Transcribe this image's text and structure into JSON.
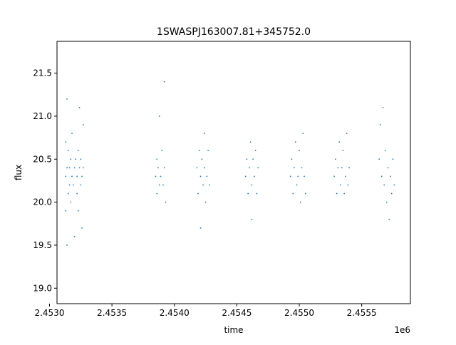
{
  "chart_data": {
    "type": "scatter",
    "title": "1SWASPJ163007.81+345752.0",
    "xlabel": "time",
    "ylabel": "flux",
    "x_offset_label": "1e6",
    "xlim": [
      2.45306,
      2.45589
    ],
    "ylim": [
      18.82,
      21.87
    ],
    "x_ticks": [
      2.453,
      2.4535,
      2.454,
      2.4545,
      2.455,
      2.4555
    ],
    "x_tick_labels": [
      "2.4530",
      "2.4535",
      "2.4540",
      "2.4545",
      "2.4550",
      "2.4555"
    ],
    "y_ticks": [
      19.0,
      19.5,
      20.0,
      20.5,
      21.0,
      21.5
    ],
    "y_tick_labels": [
      "19.0",
      "19.5",
      "20.0",
      "20.5",
      "21.0",
      "21.5"
    ],
    "grid": false,
    "legend": "none",
    "marker_color": "#1f77b4",
    "series": [
      {
        "name": "",
        "note_points_are_dense_clusters": true,
        "points": [
          [
            2.45313,
            20.3
          ],
          [
            2.45313,
            20.7
          ],
          [
            2.45313,
            19.9
          ],
          [
            2.45314,
            20.4
          ],
          [
            2.45314,
            21.2
          ],
          [
            2.45314,
            19.5
          ],
          [
            2.45315,
            20.6
          ],
          [
            2.45315,
            20.1
          ],
          [
            2.45316,
            20.4
          ],
          [
            2.45316,
            20.2
          ],
          [
            2.45317,
            20.5
          ],
          [
            2.45317,
            20.0
          ],
          [
            2.45318,
            20.3
          ],
          [
            2.45318,
            20.8
          ],
          [
            2.45319,
            20.2
          ],
          [
            2.4532,
            20.4
          ],
          [
            2.4532,
            19.6
          ],
          [
            2.45321,
            20.5
          ],
          [
            2.45322,
            20.1
          ],
          [
            2.45322,
            20.3
          ],
          [
            2.45323,
            20.6
          ],
          [
            2.45323,
            19.9
          ],
          [
            2.45324,
            20.4
          ],
          [
            2.45324,
            21.1
          ],
          [
            2.45325,
            20.2
          ],
          [
            2.45325,
            20.5
          ],
          [
            2.45326,
            20.3
          ],
          [
            2.45326,
            19.7
          ],
          [
            2.45327,
            20.4
          ],
          [
            2.45327,
            20.9
          ],
          [
            2.45385,
            20.3
          ],
          [
            2.45386,
            20.1
          ],
          [
            2.45386,
            20.5
          ],
          [
            2.45387,
            20.4
          ],
          [
            2.45388,
            20.2
          ],
          [
            2.45388,
            21.0
          ],
          [
            2.45389,
            20.3
          ],
          [
            2.4539,
            20.6
          ],
          [
            2.45391,
            20.2
          ],
          [
            2.45392,
            20.4
          ],
          [
            2.45392,
            21.4
          ],
          [
            2.45393,
            20.0
          ],
          [
            2.45418,
            20.4
          ],
          [
            2.45419,
            20.1
          ],
          [
            2.4542,
            20.6
          ],
          [
            2.45421,
            20.3
          ],
          [
            2.45421,
            19.7
          ],
          [
            2.45422,
            20.5
          ],
          [
            2.45423,
            20.2
          ],
          [
            2.45424,
            20.8
          ],
          [
            2.45424,
            20.4
          ],
          [
            2.45425,
            20.0
          ],
          [
            2.45426,
            20.3
          ],
          [
            2.45427,
            20.6
          ],
          [
            2.45428,
            20.2
          ],
          [
            2.45457,
            20.3
          ],
          [
            2.45458,
            20.5
          ],
          [
            2.45459,
            20.1
          ],
          [
            2.4546,
            20.4
          ],
          [
            2.45461,
            20.7
          ],
          [
            2.45462,
            20.2
          ],
          [
            2.45462,
            19.8
          ],
          [
            2.45463,
            20.5
          ],
          [
            2.45464,
            20.3
          ],
          [
            2.45465,
            20.6
          ],
          [
            2.45466,
            20.1
          ],
          [
            2.45467,
            20.4
          ],
          [
            2.45493,
            20.3
          ],
          [
            2.45494,
            20.5
          ],
          [
            2.45495,
            20.1
          ],
          [
            2.45496,
            20.4
          ],
          [
            2.45497,
            20.7
          ],
          [
            2.45498,
            20.2
          ],
          [
            2.45499,
            20.3
          ],
          [
            2.455,
            20.6
          ],
          [
            2.45501,
            20.0
          ],
          [
            2.45502,
            20.4
          ],
          [
            2.45503,
            20.8
          ],
          [
            2.45504,
            20.3
          ],
          [
            2.45505,
            20.1
          ],
          [
            2.45528,
            20.3
          ],
          [
            2.45529,
            20.5
          ],
          [
            2.4553,
            20.1
          ],
          [
            2.45531,
            20.4
          ],
          [
            2.45532,
            20.7
          ],
          [
            2.45533,
            20.2
          ],
          [
            2.45534,
            20.4
          ],
          [
            2.45535,
            20.6
          ],
          [
            2.45536,
            20.1
          ],
          [
            2.45537,
            20.3
          ],
          [
            2.45538,
            20.8
          ],
          [
            2.45539,
            20.2
          ],
          [
            2.4554,
            20.4
          ],
          [
            2.45564,
            20.5
          ],
          [
            2.45565,
            20.9
          ],
          [
            2.45566,
            20.3
          ],
          [
            2.45567,
            21.1
          ],
          [
            2.45568,
            20.2
          ],
          [
            2.45569,
            20.6
          ],
          [
            2.4557,
            20.0
          ],
          [
            2.45571,
            20.4
          ],
          [
            2.45572,
            19.8
          ],
          [
            2.45573,
            20.3
          ],
          [
            2.45574,
            20.1
          ],
          [
            2.45575,
            20.5
          ],
          [
            2.45576,
            20.2
          ]
        ]
      }
    ]
  }
}
